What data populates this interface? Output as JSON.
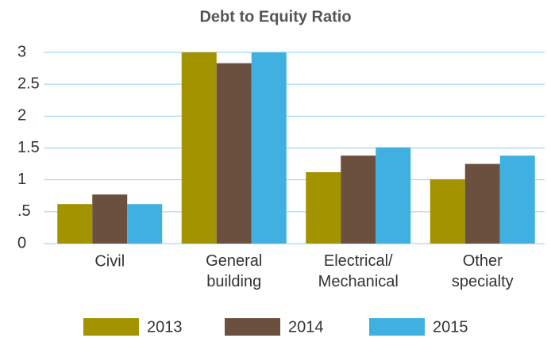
{
  "chart_data": {
    "type": "bar",
    "title": "Debt to Equity Ratio",
    "categories": [
      "Civil",
      "General building",
      "Electrical/ Mechanical",
      "Other specialty"
    ],
    "series": [
      {
        "name": "2013",
        "color": "#a39300",
        "values": [
          0.62,
          3.0,
          1.12,
          1.01
        ]
      },
      {
        "name": "2014",
        "color": "#6b4f3f",
        "values": [
          0.77,
          2.83,
          1.38,
          1.25
        ]
      },
      {
        "name": "2015",
        "color": "#3fb0e0",
        "values": [
          0.62,
          3.0,
          1.51,
          1.38
        ]
      }
    ],
    "ylim": [
      0,
      3
    ],
    "yticks": [
      0,
      {
        "value": 0.5,
        "label": ".5"
      },
      1,
      1.5,
      2,
      2.5,
      3
    ],
    "grid": true,
    "legend": "bottom"
  }
}
